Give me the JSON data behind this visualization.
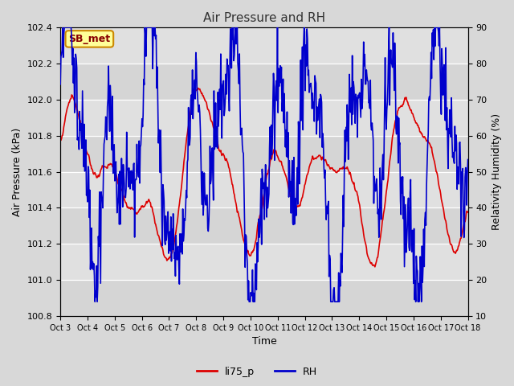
{
  "title": "Air Pressure and RH",
  "xlabel": "Time",
  "ylabel_left": "Air Pressure (kPa)",
  "ylabel_right": "Relativity Humidity (%)",
  "ylim_left": [
    100.8,
    102.4
  ],
  "ylim_right": [
    10,
    90
  ],
  "yticks_left": [
    100.8,
    101.0,
    101.2,
    101.4,
    101.6,
    101.8,
    102.0,
    102.2,
    102.4
  ],
  "yticks_right": [
    10,
    20,
    30,
    40,
    50,
    60,
    70,
    80,
    90
  ],
  "xtick_labels": [
    "Oct 3",
    "Oct 4",
    "Oct 5",
    "Oct 6",
    "Oct 7",
    "Oct 8",
    "Oct 9",
    "Oct 10",
    "Oct 11",
    "Oct 12",
    "Oct 13",
    "Oct 14",
    "Oct 15",
    "Oct 16",
    "Oct 17",
    "Oct 18"
  ],
  "legend_labels": [
    "li75_p",
    "RH"
  ],
  "line_color_pressure": "#dd0000",
  "line_color_rh": "#0000cc",
  "fig_bg_color": "#d8d8d8",
  "plot_bg_color": "#e0e0e0",
  "grid_color": "#f0f0f0",
  "annotation_text": "SB_met",
  "annotation_bg": "#ffff99",
  "annotation_border": "#cc8800",
  "annotation_text_color": "#880000"
}
